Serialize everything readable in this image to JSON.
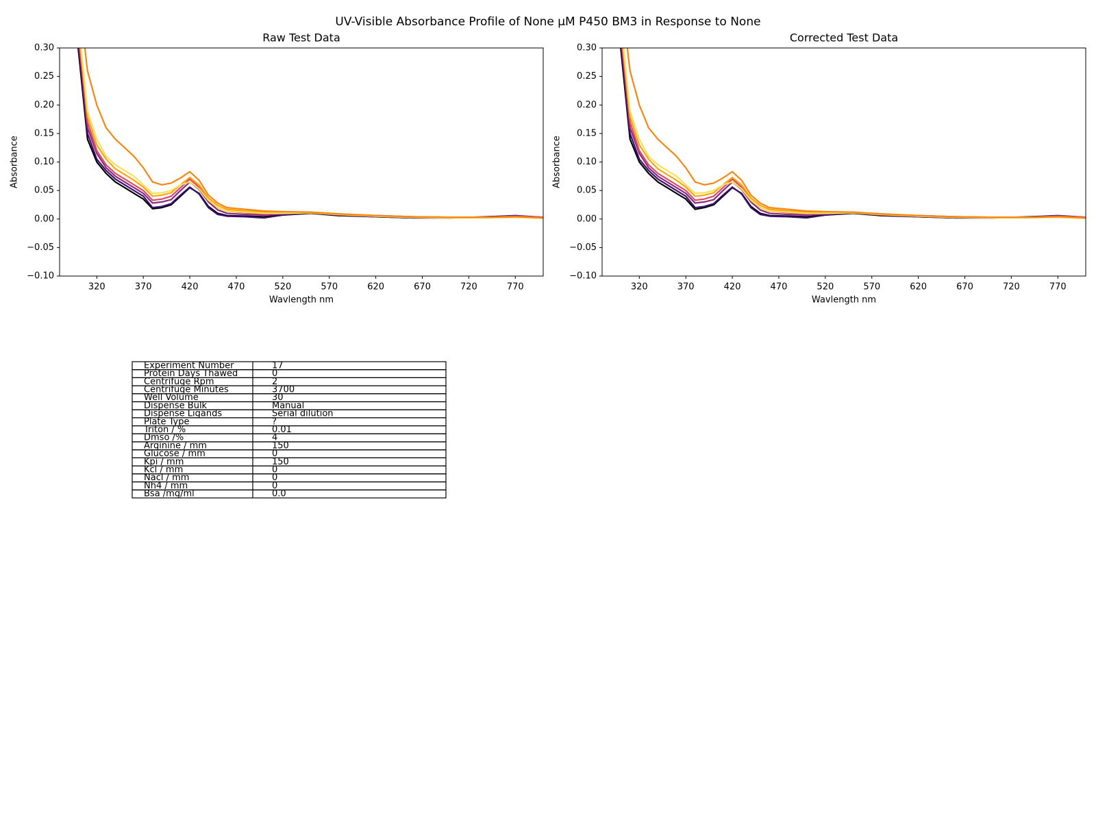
{
  "title": "UV-Visible Absorbance Profile of None µM P450 BM3 in Response to None",
  "chart_data": [
    {
      "type": "line",
      "title": "Raw Test Data",
      "x_label": "Wavlength nm",
      "y_label": "Absorbance",
      "xlim": [
        280,
        800
      ],
      "ylim": [
        -0.1,
        0.3
      ],
      "xticks": [
        320,
        370,
        420,
        470,
        520,
        570,
        620,
        670,
        720,
        770
      ],
      "yticks": [
        {
          "value": -0.1,
          "label": "−0.10"
        },
        {
          "value": -0.05,
          "label": "−0.05"
        },
        {
          "value": 0,
          "label": "0.00"
        },
        {
          "value": 0.05,
          "label": "0.05"
        },
        {
          "value": 0.1,
          "label": "0.10"
        },
        {
          "value": 0.15,
          "label": "0.15"
        },
        {
          "value": 0.2,
          "label": "0.20"
        },
        {
          "value": 0.25,
          "label": "0.25"
        },
        {
          "value": 0.3,
          "label": "0.30"
        }
      ],
      "x": [
        300,
        310,
        320,
        330,
        340,
        350,
        360,
        370,
        380,
        390,
        400,
        410,
        420,
        430,
        440,
        450,
        460,
        480,
        500,
        520,
        550,
        580,
        620,
        660,
        700,
        740,
        770,
        800
      ],
      "series": [
        {
          "color": "#000004",
          "values": [
            0.3,
            0.14,
            0.1,
            0.08,
            0.065,
            0.055,
            0.045,
            0.035,
            0.018,
            0.02,
            0.025,
            0.04,
            0.055,
            0.045,
            0.022,
            0.01,
            0.006,
            0.005,
            0.004,
            0.007,
            0.01,
            0.006,
            0.004,
            0.002,
            0.002,
            0.003,
            0.005,
            0.003
          ]
        },
        {
          "color": "#3b0f70",
          "values": [
            0.31,
            0.15,
            0.105,
            0.085,
            0.07,
            0.06,
            0.05,
            0.04,
            0.02,
            0.022,
            0.027,
            0.042,
            0.056,
            0.044,
            0.02,
            0.008,
            0.005,
            0.004,
            0.002,
            0.007,
            0.011,
            0.007,
            0.004,
            0.002,
            0.002,
            0.004,
            0.006,
            0.003
          ]
        },
        {
          "color": "#8c2981",
          "values": [
            0.32,
            0.16,
            0.115,
            0.09,
            0.075,
            0.065,
            0.055,
            0.045,
            0.028,
            0.03,
            0.034,
            0.05,
            0.065,
            0.052,
            0.03,
            0.016,
            0.01,
            0.008,
            0.007,
            0.009,
            0.011,
            0.007,
            0.005,
            0.003,
            0.002,
            0.003,
            0.005,
            0.003
          ]
        },
        {
          "color": "#de4968",
          "values": [
            0.33,
            0.17,
            0.12,
            0.095,
            0.08,
            0.07,
            0.06,
            0.05,
            0.033,
            0.035,
            0.04,
            0.055,
            0.07,
            0.056,
            0.033,
            0.02,
            0.014,
            0.011,
            0.009,
            0.01,
            0.011,
            0.008,
            0.006,
            0.004,
            0.003,
            0.003,
            0.005,
            0.003
          ]
        },
        {
          "color": "#fca50a",
          "values": [
            0.34,
            0.18,
            0.13,
            0.105,
            0.088,
            0.078,
            0.068,
            0.056,
            0.04,
            0.042,
            0.046,
            0.06,
            0.073,
            0.06,
            0.037,
            0.024,
            0.017,
            0.014,
            0.012,
            0.012,
            0.012,
            0.009,
            0.006,
            0.004,
            0.003,
            0.003,
            0.004,
            0.002
          ]
        },
        {
          "color": "#f6e05a",
          "values": [
            0.35,
            0.19,
            0.14,
            0.11,
            0.095,
            0.085,
            0.075,
            0.06,
            0.045,
            0.046,
            0.05,
            0.06,
            0.065,
            0.053,
            0.033,
            0.02,
            0.014,
            0.012,
            0.01,
            0.01,
            0.011,
            0.008,
            0.005,
            0.003,
            0.002,
            0.002,
            0.003,
            0.001
          ]
        },
        {
          "color": "#f8850f",
          "values": [
            0.4,
            0.26,
            0.2,
            0.16,
            0.14,
            0.125,
            0.11,
            0.09,
            0.065,
            0.06,
            0.063,
            0.072,
            0.083,
            0.068,
            0.042,
            0.028,
            0.02,
            0.017,
            0.014,
            0.013,
            0.012,
            0.009,
            0.006,
            0.004,
            0.003,
            0.003,
            0.004,
            0.002
          ]
        }
      ]
    },
    {
      "type": "line",
      "title": "Corrected Test Data",
      "x_label": "Wavlength nm",
      "y_label": "Absorbance",
      "xlim": [
        280,
        800
      ],
      "ylim": [
        -0.1,
        0.3
      ],
      "xticks": [
        320,
        370,
        420,
        470,
        520,
        570,
        620,
        670,
        720,
        770
      ],
      "yticks": [
        {
          "value": -0.1,
          "label": "−0.10"
        },
        {
          "value": -0.05,
          "label": "−0.05"
        },
        {
          "value": 0,
          "label": "0.00"
        },
        {
          "value": 0.05,
          "label": "0.05"
        },
        {
          "value": 0.1,
          "label": "0.10"
        },
        {
          "value": 0.15,
          "label": "0.15"
        },
        {
          "value": 0.2,
          "label": "0.20"
        },
        {
          "value": 0.25,
          "label": "0.25"
        },
        {
          "value": 0.3,
          "label": "0.30"
        }
      ],
      "x": [
        300,
        310,
        320,
        330,
        340,
        350,
        360,
        370,
        380,
        390,
        400,
        410,
        420,
        430,
        440,
        450,
        460,
        480,
        500,
        520,
        550,
        580,
        620,
        660,
        700,
        740,
        770,
        800
      ],
      "series": [
        {
          "color": "#000004",
          "values": [
            0.3,
            0.14,
            0.1,
            0.08,
            0.065,
            0.055,
            0.045,
            0.035,
            0.017,
            0.02,
            0.025,
            0.04,
            0.055,
            0.045,
            0.022,
            0.01,
            0.006,
            0.005,
            0.004,
            0.007,
            0.01,
            0.006,
            0.004,
            0.002,
            0.002,
            0.003,
            0.005,
            0.003
          ]
        },
        {
          "color": "#3b0f70",
          "values": [
            0.31,
            0.15,
            0.105,
            0.085,
            0.07,
            0.06,
            0.05,
            0.04,
            0.02,
            0.022,
            0.027,
            0.042,
            0.056,
            0.044,
            0.02,
            0.008,
            0.005,
            0.004,
            0.002,
            0.007,
            0.011,
            0.007,
            0.004,
            0.002,
            0.002,
            0.004,
            0.006,
            0.003
          ]
        },
        {
          "color": "#8c2981",
          "values": [
            0.32,
            0.16,
            0.115,
            0.09,
            0.075,
            0.065,
            0.055,
            0.045,
            0.028,
            0.03,
            0.034,
            0.05,
            0.065,
            0.052,
            0.03,
            0.016,
            0.01,
            0.008,
            0.007,
            0.009,
            0.011,
            0.007,
            0.005,
            0.003,
            0.002,
            0.003,
            0.005,
            0.003
          ]
        },
        {
          "color": "#de4968",
          "values": [
            0.33,
            0.17,
            0.12,
            0.095,
            0.08,
            0.07,
            0.06,
            0.05,
            0.033,
            0.035,
            0.04,
            0.055,
            0.07,
            0.056,
            0.033,
            0.02,
            0.014,
            0.011,
            0.009,
            0.01,
            0.011,
            0.008,
            0.006,
            0.004,
            0.003,
            0.003,
            0.005,
            0.003
          ]
        },
        {
          "color": "#fca50a",
          "values": [
            0.34,
            0.18,
            0.13,
            0.105,
            0.088,
            0.078,
            0.068,
            0.056,
            0.04,
            0.042,
            0.046,
            0.06,
            0.073,
            0.06,
            0.037,
            0.024,
            0.017,
            0.014,
            0.012,
            0.012,
            0.012,
            0.009,
            0.006,
            0.004,
            0.003,
            0.003,
            0.004,
            0.002
          ]
        },
        {
          "color": "#f6e05a",
          "values": [
            0.35,
            0.19,
            0.14,
            0.11,
            0.095,
            0.085,
            0.075,
            0.06,
            0.045,
            0.046,
            0.05,
            0.06,
            0.065,
            0.053,
            0.033,
            0.02,
            0.014,
            0.012,
            0.01,
            0.01,
            0.011,
            0.008,
            0.005,
            0.003,
            0.002,
            0.002,
            0.003,
            0.001
          ]
        },
        {
          "color": "#f8850f",
          "values": [
            0.4,
            0.26,
            0.2,
            0.16,
            0.14,
            0.125,
            0.11,
            0.09,
            0.065,
            0.06,
            0.063,
            0.072,
            0.083,
            0.068,
            0.042,
            0.028,
            0.02,
            0.017,
            0.014,
            0.013,
            0.012,
            0.009,
            0.006,
            0.004,
            0.003,
            0.003,
            0.004,
            0.002
          ]
        }
      ]
    }
  ],
  "table": {
    "rows": [
      [
        "Experiment Number",
        "17"
      ],
      [
        "Protein Days Thawed",
        "0"
      ],
      [
        "Centrifuge Rpm",
        "2"
      ],
      [
        "Centrifuge Minutes",
        "3700"
      ],
      [
        "Well Volume",
        "30"
      ],
      [
        "Dispense Bulk",
        "Manual"
      ],
      [
        "Dispense Ligands",
        "Serial dilution"
      ],
      [
        "Plate Type",
        "?"
      ],
      [
        "Triton  / %",
        "0.01"
      ],
      [
        "Dmso /%",
        "4"
      ],
      [
        "Arginine / mm",
        "150"
      ],
      [
        "Glucose / mm",
        "0"
      ],
      [
        "Kpi / mm",
        "150"
      ],
      [
        "Kcl / mm",
        "0"
      ],
      [
        "Nacl / mm",
        "0"
      ],
      [
        "Nh4 / mm",
        "0"
      ],
      [
        "Bsa /mg/ml",
        "0.0"
      ]
    ]
  }
}
